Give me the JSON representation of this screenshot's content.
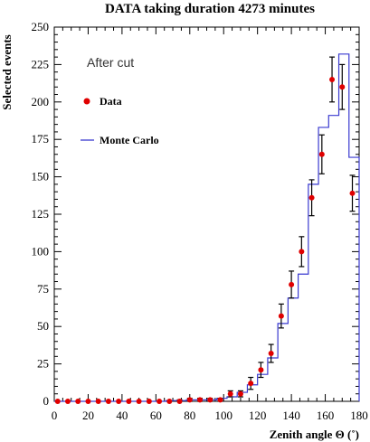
{
  "chart_data": {
    "type": "scatter",
    "title": "DATA taking duration 4273 minutes",
    "xlabel": "Zenith angle Θ (˚)",
    "ylabel": "Selected events",
    "annotation": "After cut",
    "xlim": [
      0,
      180
    ],
    "ylim": [
      0,
      250
    ],
    "x_ticks": [
      0,
      20,
      40,
      60,
      80,
      100,
      120,
      140,
      160,
      180
    ],
    "y_ticks": [
      0,
      25,
      50,
      75,
      100,
      125,
      150,
      175,
      200,
      225,
      250
    ],
    "legend_position": "top-left",
    "series": [
      {
        "name": "Data",
        "kind": "points-with-error-bars",
        "color": "#e00000",
        "x": [
          2,
          8,
          14,
          20,
          26,
          32,
          38,
          44,
          50,
          56,
          62,
          68,
          74,
          80,
          86,
          92,
          98,
          104,
          110,
          116,
          122,
          128,
          134,
          140,
          146,
          152,
          158,
          164,
          170,
          176
        ],
        "y": [
          0,
          0,
          0,
          0,
          0,
          0,
          0,
          0,
          0,
          0,
          0,
          0,
          0,
          1,
          1,
          1,
          1,
          5,
          5,
          12,
          21,
          32,
          57,
          78,
          100,
          136,
          165,
          215,
          210,
          139
        ],
        "error": [
          0,
          0,
          0,
          0,
          0,
          0,
          0,
          0,
          0,
          0,
          0,
          0,
          1,
          1,
          1,
          1,
          1,
          2,
          2,
          4,
          5,
          6,
          8,
          9,
          10,
          12,
          13,
          15,
          15,
          12
        ]
      },
      {
        "name": "Monte Carlo",
        "kind": "histogram-step",
        "color": "#3a3ad0",
        "bin_edges": [
          0,
          6,
          12,
          18,
          24,
          30,
          36,
          42,
          48,
          54,
          60,
          66,
          72,
          78,
          84,
          90,
          96,
          102,
          108,
          114,
          120,
          126,
          132,
          138,
          144,
          150,
          156,
          162,
          168,
          174,
          180
        ],
        "values": [
          0,
          0,
          0,
          0,
          0,
          0,
          0,
          0,
          0,
          0,
          0,
          0.5,
          0.5,
          1,
          1,
          1,
          2,
          3,
          6,
          11,
          18,
          29,
          52,
          69,
          85,
          145,
          183,
          191,
          232,
          163
        ]
      }
    ]
  }
}
